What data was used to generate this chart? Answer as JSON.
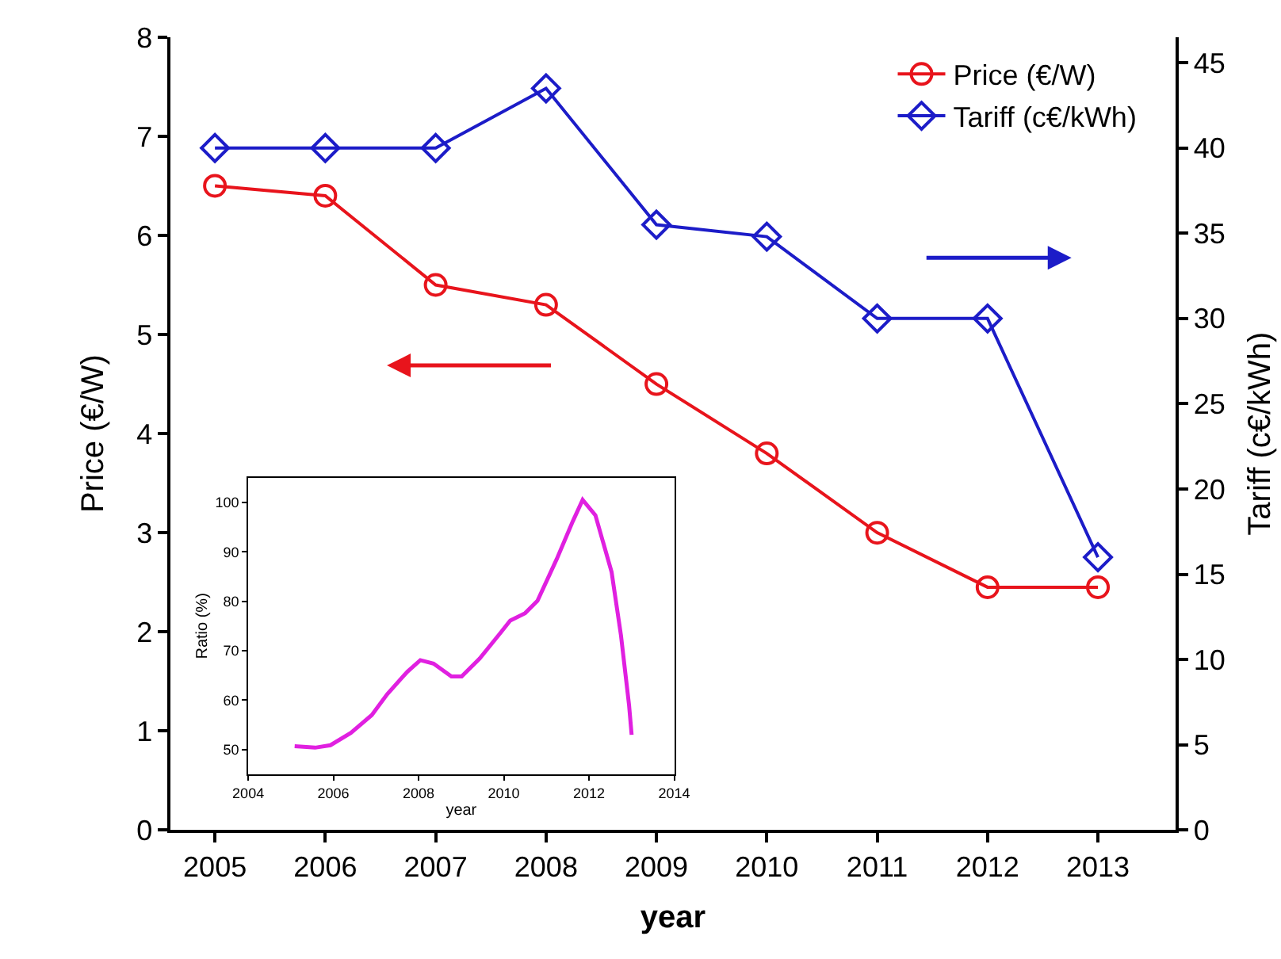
{
  "chart_data": [
    {
      "type": "line",
      "xlabel": "year",
      "ylabel": "Price (€/W)",
      "y2label": "Tariff (c€/kWh)",
      "x": [
        2005,
        2006,
        2007,
        2008,
        2009,
        2010,
        2011,
        2012,
        2013
      ],
      "xlim": [
        2004.6,
        2013.7
      ],
      "xticks": [
        2005,
        2006,
        2007,
        2008,
        2009,
        2010,
        2011,
        2012,
        2013
      ],
      "ylim": [
        0,
        8
      ],
      "yticks": [
        0,
        1,
        2,
        3,
        4,
        5,
        6,
        7,
        8
      ],
      "y2lim": [
        0,
        46.5
      ],
      "y2ticks": [
        0,
        5,
        10,
        15,
        20,
        25,
        30,
        35,
        40,
        45
      ],
      "legend": "top right",
      "line_style": "solid",
      "series": [
        {
          "name": "Price (€/W)",
          "color": "#e8141c",
          "marker": "circle",
          "values": [
            6.5,
            6.4,
            5.5,
            5.3,
            4.5,
            3.8,
            3.0,
            2.45,
            2.45
          ]
        },
        {
          "name": "Tariff (c€/kWh)",
          "color": "#1c1cc8",
          "marker": "diamond",
          "axis": "y2",
          "values": [
            40,
            40,
            40,
            43.5,
            35.5,
            34.8,
            30,
            30,
            16
          ]
        }
      ]
    },
    {
      "type": "line",
      "xlabel": "year",
      "ylabel": "Ratio (%)",
      "xlim": [
        2004,
        2014
      ],
      "xticks": [
        2004,
        2006,
        2008,
        2010,
        2012,
        2014
      ],
      "ylim": [
        45,
        105
      ],
      "yticks": [
        50,
        60,
        70,
        80,
        90,
        100
      ],
      "marker": "none",
      "series": [
        {
          "color": "#e020e0",
          "x": [
            2005.09,
            2005.57,
            2005.93,
            2006.41,
            2006.9,
            2007.26,
            2007.74,
            2008.04,
            2008.35,
            2008.77,
            2009.01,
            2009.43,
            2009.91,
            2010.15,
            2010.5,
            2010.79,
            2011.24,
            2011.62,
            2011.85,
            2012.15,
            2012.53,
            2012.75,
            2012.94,
            2013.0
          ],
          "values": [
            50.7,
            50.4,
            50.9,
            53.4,
            57,
            61.2,
            65.8,
            68.1,
            67.4,
            64.8,
            64.8,
            68.4,
            73.5,
            76.1,
            77.6,
            80.1,
            88.5,
            96.2,
            100.5,
            97.4,
            85.9,
            73.1,
            59,
            53
          ]
        }
      ]
    }
  ]
}
